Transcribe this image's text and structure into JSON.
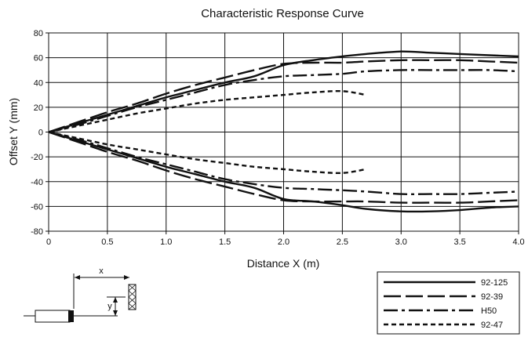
{
  "chart_data": {
    "type": "line",
    "title": "Characteristic Response Curve",
    "xlabel": "Distance X (m)",
    "ylabel": "Offset Y (mm)",
    "xlim": [
      0,
      4.0
    ],
    "ylim": [
      -80,
      80
    ],
    "xticks": [
      "0",
      "0.5",
      "1.0",
      "1.5",
      "2.0",
      "2.5",
      "3.0",
      "3.5",
      "4.0"
    ],
    "yticks": [
      "80",
      "60",
      "40",
      "20",
      "0",
      "-20",
      "-40",
      "-60",
      "-80"
    ],
    "grid": true,
    "legend_position": "bottom-right",
    "x": [
      0,
      0.25,
      0.5,
      0.75,
      1.0,
      1.25,
      1.5,
      1.75,
      2.0,
      2.25,
      2.5,
      2.7,
      3.0,
      3.25,
      3.5,
      3.75,
      4.0
    ],
    "series": [
      {
        "name": "92-125",
        "style": "solid",
        "upper": [
          0,
          7,
          14,
          21,
          28,
          34,
          40,
          45,
          54,
          58,
          61,
          63,
          65,
          64,
          63,
          62,
          61
        ],
        "lower": [
          0,
          -7,
          -14,
          -21,
          -28,
          -34,
          -40,
          -45,
          -54,
          -56,
          -59,
          -62,
          -64,
          -64,
          -63,
          -61,
          -60
        ]
      },
      {
        "name": "92-39",
        "style": "long-dash",
        "upper": [
          0,
          8,
          16,
          23,
          31,
          38,
          44,
          50,
          55,
          56,
          56,
          57,
          58,
          58,
          58,
          57,
          56
        ],
        "lower": [
          0,
          -8,
          -16,
          -23,
          -31,
          -38,
          -44,
          -50,
          -55,
          -56,
          -56,
          -56,
          -57,
          -57,
          -57,
          -56,
          -55
        ]
      },
      {
        "name": "H50",
        "style": "dash-dot",
        "upper": [
          0,
          6,
          13,
          20,
          26,
          32,
          38,
          42,
          45,
          46,
          47,
          49,
          50,
          50,
          50,
          50,
          49
        ],
        "lower": [
          0,
          -6,
          -13,
          -20,
          -26,
          -32,
          -38,
          -42,
          -45,
          -46,
          -47,
          -48,
          -50,
          -50,
          -50,
          -49,
          -48
        ]
      },
      {
        "name": "92-47",
        "style": "short-dash",
        "upper": [
          0,
          5,
          10,
          15,
          19,
          23,
          26,
          28,
          30,
          32,
          33,
          30
        ],
        "lower": [
          0,
          -5,
          -10,
          -14,
          -18,
          -22,
          -25,
          -28,
          -30,
          -32,
          -33,
          -30
        ]
      }
    ]
  },
  "diagram": {
    "x_label": "x",
    "y_label": "y"
  }
}
